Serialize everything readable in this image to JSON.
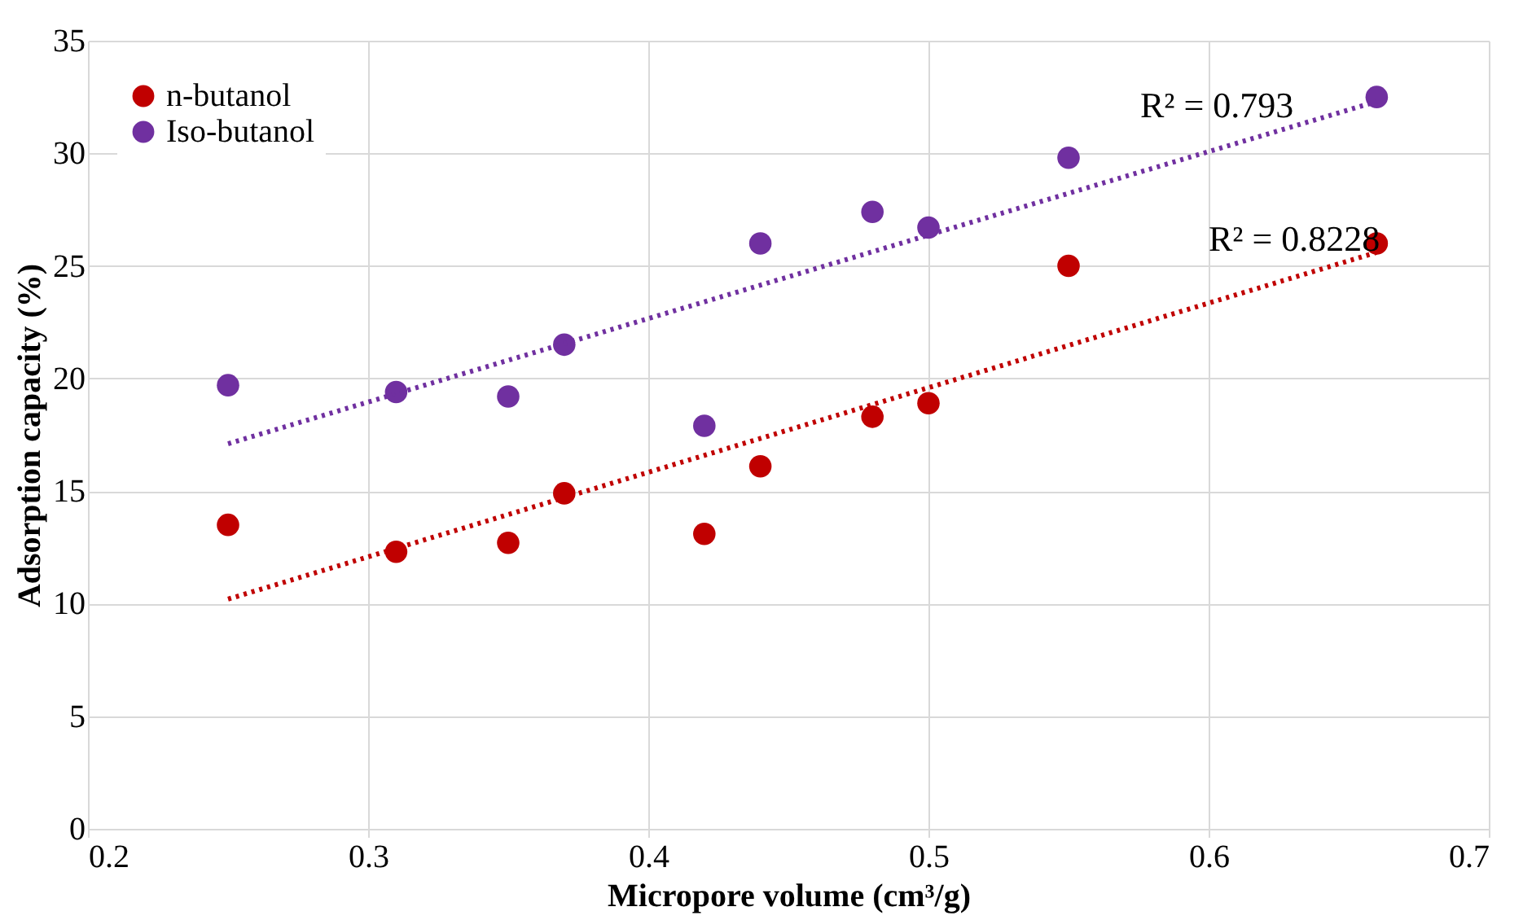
{
  "chart_data": {
    "type": "scatter",
    "xlabel": "Micropore volume (cm³/g)",
    "ylabel": "Adsorption capacity (%)",
    "xlim": [
      0.2,
      0.7
    ],
    "xticks": [
      0.2,
      0.3,
      0.4,
      0.5,
      0.6,
      0.7
    ],
    "ylim": [
      0,
      35
    ],
    "yticks": [
      0,
      5,
      10,
      15,
      20,
      25,
      30,
      35
    ],
    "grid": true,
    "legend": "top left",
    "marker": "circle",
    "series": [
      {
        "name": "n-butanol",
        "color": "#c00000",
        "x": [
          0.25,
          0.31,
          0.35,
          0.37,
          0.42,
          0.44,
          0.48,
          0.5,
          0.55,
          0.66
        ],
        "values": [
          13.5,
          12.3,
          12.7,
          14.9,
          13.1,
          16.1,
          18.3,
          18.9,
          25.0,
          26.0
        ]
      },
      {
        "name": "Iso-butanol",
        "color": "#7030a0",
        "x": [
          0.25,
          0.31,
          0.35,
          0.37,
          0.42,
          0.44,
          0.48,
          0.5,
          0.55,
          0.66
        ],
        "values": [
          19.7,
          19.4,
          19.2,
          21.5,
          17.9,
          26.0,
          27.4,
          26.7,
          29.8,
          32.5
        ]
      },
      {
        "type": "line",
        "color": "#c00000",
        "x": [
          0.25,
          0.66
        ],
        "values": [
          10.2,
          25.6
        ],
        "line_style": "dotted",
        "marker": "none"
      },
      {
        "type": "line",
        "color": "#7030a0",
        "x": [
          0.25,
          0.66
        ],
        "values": [
          17.1,
          32.3
        ],
        "line_style": "dotted",
        "marker": "none"
      }
    ],
    "annotations": [
      "R² = 0.793",
      "R² = 0.8228"
    ]
  }
}
